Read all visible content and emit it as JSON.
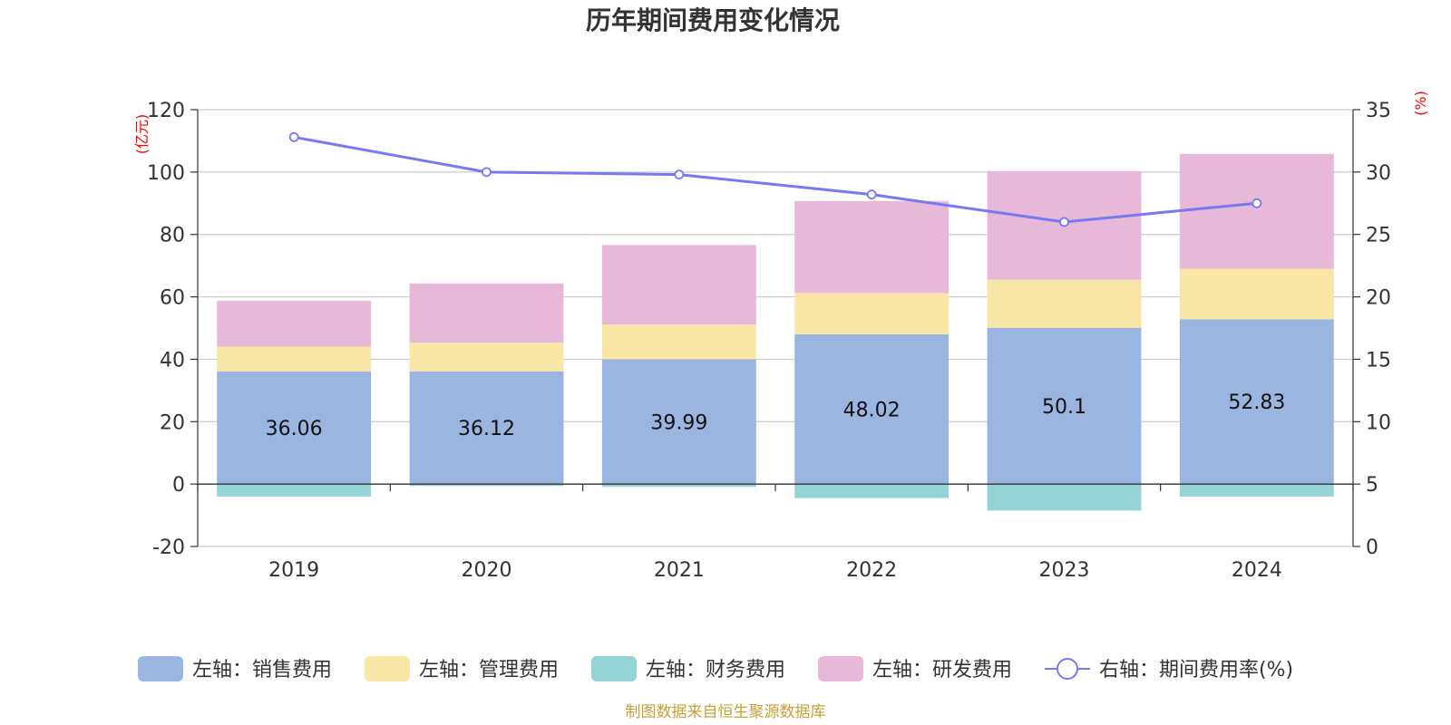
{
  "chart_data": {
    "type": "bar",
    "title": "历年期间费用变化情况",
    "categories": [
      "2019",
      "2020",
      "2021",
      "2022",
      "2023",
      "2024"
    ],
    "left_axis": {
      "unit_label": "(亿元)",
      "ylim": [
        -20,
        120
      ],
      "ticks": [
        "120",
        "100",
        "80",
        "60",
        "40",
        "20",
        "0",
        "-20"
      ],
      "tick_values": [
        120,
        100,
        80,
        60,
        40,
        20,
        0,
        -20
      ]
    },
    "right_axis": {
      "unit_label": "(%)",
      "ylim": [
        0,
        35
      ],
      "ticks": [
        "35",
        "30",
        "25",
        "20",
        "15",
        "10",
        "5",
        "0"
      ],
      "tick_values": [
        35,
        30,
        25,
        20,
        15,
        10,
        5,
        0
      ]
    },
    "series": [
      {
        "name": "左轴：销售费用",
        "type": "bar",
        "axis": "left",
        "color": "#9ab6e0",
        "stack": "pos",
        "values": [
          36.06,
          36.12,
          39.99,
          48.02,
          50.1,
          52.83
        ],
        "labels": [
          "36.06",
          "36.12",
          "39.99",
          "48.02",
          "50.1",
          "52.83"
        ]
      },
      {
        "name": "左轴：管理费用",
        "type": "bar",
        "axis": "left",
        "color": "#f7e6a6",
        "stack": "pos",
        "values": [
          8.0,
          9.2,
          11.1,
          13.2,
          15.4,
          16.2
        ]
      },
      {
        "name": "左轴：财务费用",
        "type": "bar",
        "axis": "left",
        "color": "#94d4d4",
        "stack": "neg",
        "values": [
          -4.0,
          -0.6,
          -0.9,
          -4.5,
          -8.5,
          -4.0
        ]
      },
      {
        "name": "左轴：研发费用",
        "type": "bar",
        "axis": "left",
        "color": "#e8b8d8",
        "stack": "pos",
        "values": [
          14.7,
          19.0,
          25.5,
          29.5,
          34.8,
          36.8
        ]
      },
      {
        "name": "右轴：期间费用率(%)",
        "type": "line",
        "axis": "right",
        "color": "#7679f2",
        "values": [
          32.8,
          30.0,
          29.8,
          28.2,
          26.0,
          27.5
        ]
      }
    ],
    "grid": true,
    "legend_position": "bottom"
  },
  "source_note": "制图数据来自恒生聚源数据库"
}
